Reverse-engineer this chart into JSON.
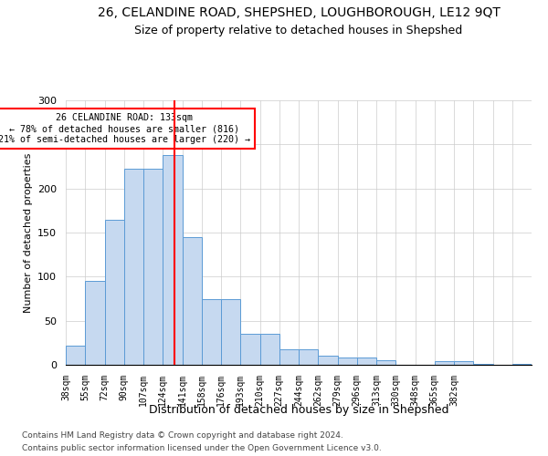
{
  "title_line1": "26, CELANDINE ROAD, SHEPSHED, LOUGHBOROUGH, LE12 9QT",
  "title_line2": "Size of property relative to detached houses in Shepshed",
  "xlabel": "Distribution of detached houses by size in Shepshed",
  "ylabel": "Number of detached properties",
  "bar_heights": [
    22,
    95,
    165,
    222,
    222,
    238,
    145,
    75,
    75,
    35,
    35,
    18,
    18,
    10,
    8,
    8,
    5,
    0,
    0,
    4,
    4,
    1,
    0,
    1
  ],
  "categories": [
    "38sqm",
    "55sqm",
    "72sqm",
    "90sqm",
    "107sqm",
    "124sqm",
    "141sqm",
    "158sqm",
    "176sqm",
    "193sqm",
    "210sqm",
    "227sqm",
    "244sqm",
    "262sqm",
    "279sqm",
    "296sqm",
    "313sqm",
    "330sqm",
    "348sqm",
    "365sqm",
    "382sqm",
    "",
    "",
    ""
  ],
  "bar_color": "#c6d9f0",
  "bar_edge_color": "#5b9bd5",
  "vline_x": 6,
  "vline_color": "red",
  "annotation_title": "26 CELANDINE ROAD: 133sqm",
  "annotation_line1": "← 78% of detached houses are smaller (816)",
  "annotation_line2": "21% of semi-detached houses are larger (220) →",
  "ylim": [
    0,
    300
  ],
  "yticks": [
    0,
    50,
    100,
    150,
    200,
    250,
    300
  ],
  "footer1": "Contains HM Land Registry data © Crown copyright and database right 2024.",
  "footer2": "Contains public sector information licensed under the Open Government Licence v3.0."
}
